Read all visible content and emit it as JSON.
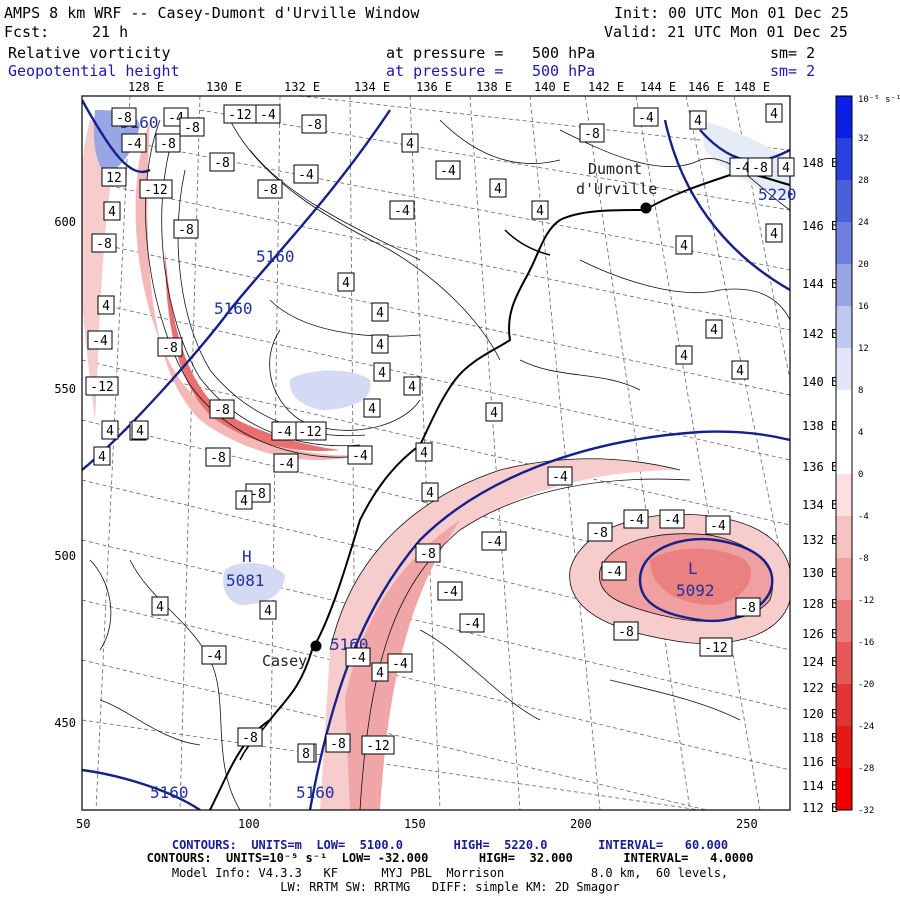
{
  "header": {
    "title": "AMPS 8 km WRF -- Casey-Dumont d'Urville Window",
    "init": "Init: 00 UTC Mon 01 Dec 25",
    "fcst_label": "Fcst:",
    "fcst_value": "21 h",
    "valid": "Valid: 21 UTC Mon 01 Dec 25"
  },
  "fields": [
    {
      "name": "Relative vorticity",
      "pressure_label": "at pressure =",
      "pressure": "500 hPa",
      "smooth": "sm= 2",
      "color": "#000000"
    },
    {
      "name": "Geopotential height",
      "pressure_label": "at pressure =",
      "pressure": "500 hPa",
      "smooth": "sm= 2",
      "color": "#1a1ab0"
    }
  ],
  "top_axis": [
    "128 E",
    "130 E",
    "132 E",
    "134 E",
    "136 E",
    "138 E",
    "140 E",
    "142 E",
    "144 E",
    "146 E",
    "148 E"
  ],
  "right_axis": [
    "148 E",
    "146 E",
    "144 E",
    "142 E",
    "140 E",
    "138 E",
    "136 E",
    "134 E",
    "132 E",
    "130 E",
    "128 E",
    "126 E",
    "124 E",
    "122 E",
    "120 E",
    "118 E",
    "116 E",
    "114 E",
    "112 E"
  ],
  "x_ticks": [
    "50",
    "100",
    "150",
    "200",
    "250"
  ],
  "y_ticks": [
    "600",
    "550",
    "500",
    "450"
  ],
  "colorbar": {
    "unit": "10⁻⁵ s⁻¹",
    "labels": [
      "32",
      "28",
      "24",
      "20",
      "16",
      "12",
      "8",
      "4",
      "0",
      "-4",
      "-8",
      "-12",
      "-16",
      "-20",
      "-24",
      "-28",
      "-32"
    ],
    "colors": [
      "#0a1ee6",
      "#2a40e0",
      "#4a5fd8",
      "#6e80dc",
      "#98a6e6",
      "#bfc8f0",
      "#e2e6f8",
      "#ffffff",
      "#ffffff",
      "#fbe0e0",
      "#f6c2c2",
      "#f0a0a0",
      "#ea7c7c",
      "#e45858",
      "#e23636",
      "#e61818",
      "#f00000"
    ]
  },
  "places": {
    "dumont": "Dumont\nd'Urville",
    "casey": "Casey",
    "high": "H",
    "high_value": "5081",
    "low": "L",
    "low_value": "5092"
  },
  "height_labels": [
    "5160",
    "5160",
    "5160",
    "5160",
    "5160",
    "5160",
    "5220"
  ],
  "vort_labels": [
    "-12",
    "-8",
    "-8",
    "-8",
    "-12",
    "-8",
    "-8",
    "-4",
    "-4",
    "-4",
    "-8",
    "-4",
    "-8",
    "-12",
    "-8",
    "-12",
    "-4",
    "-4",
    "-8",
    "-4",
    "-8",
    "-4",
    "-8",
    "-4",
    "-4",
    "-4",
    "-4",
    "-4",
    "-8",
    "-4",
    "-4",
    "-4",
    "-4",
    "-4",
    "-8",
    "-8",
    "-12",
    "-8",
    "-12",
    "-8",
    "-8",
    "-4",
    "-4",
    "-8",
    "-4",
    "-8",
    "-4",
    "-4",
    "-8"
  ],
  "pos_labels": [
    "12",
    "4",
    "4",
    "4",
    "4",
    "4",
    "4",
    "4",
    "4",
    "4",
    "4",
    "4",
    "4",
    "4",
    "4",
    "4",
    "4",
    "4",
    "4",
    "4",
    "4",
    "4",
    "4",
    "4",
    "4",
    "4",
    "4",
    "4",
    "4",
    "4",
    "4",
    "4",
    "8"
  ],
  "footer": {
    "line1": "CONTOURS:  UNITS=m  LOW=  5100.0       HIGH=  5220.0       INTERVAL=   60.000",
    "line2": "CONTOURS:  UNITS=10⁻⁵ s⁻¹  LOW= -32.000       HIGH=  32.000       INTERVAL=   4.0000",
    "line3": "Model Info: V4.3.3   KF      MYJ PBL  Morrison            8.0 km,  60 levels,",
    "line4": "LW: RRTM SW: RRTMG   DIFF: simple KM: 2D Smagor"
  }
}
